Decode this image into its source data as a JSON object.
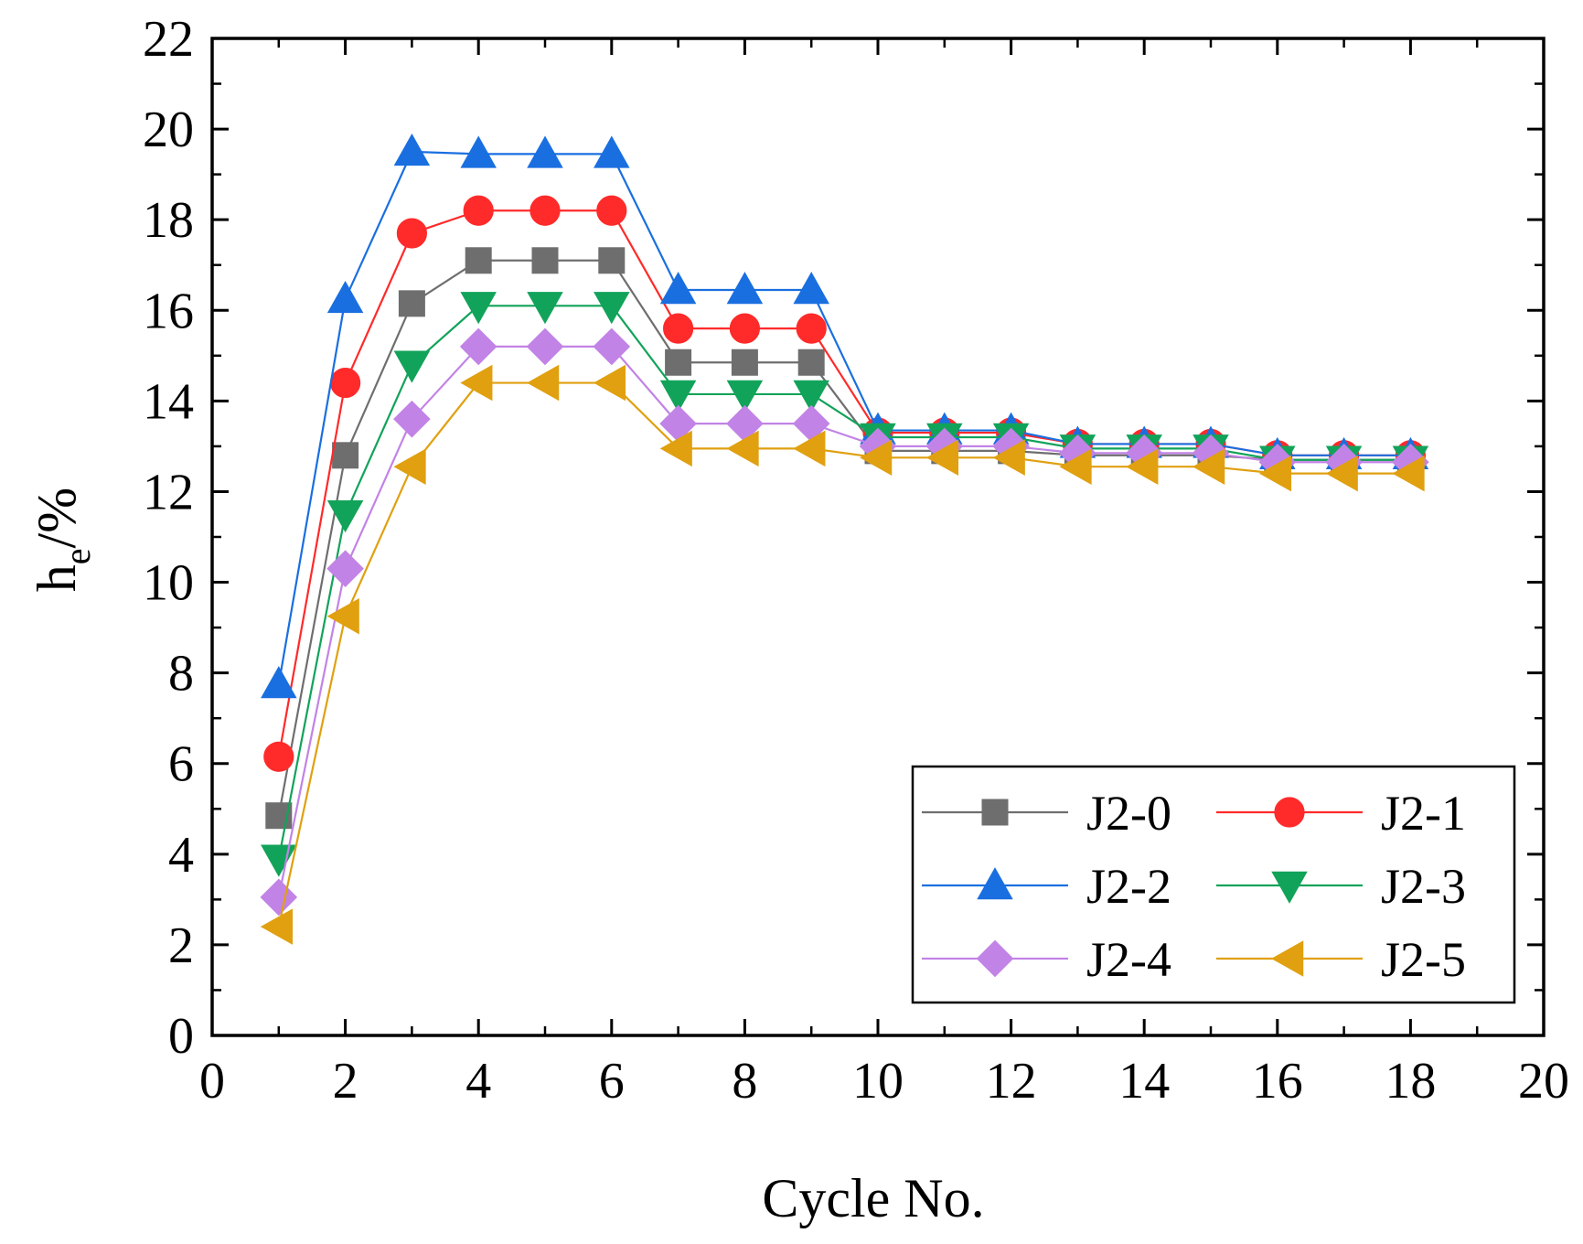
{
  "chart_data": {
    "type": "line",
    "title": "",
    "xlabel": "Cycle No.",
    "ylabel": {
      "main": "h",
      "subscript": "e",
      "suffix": "/%"
    },
    "xlim": [
      0,
      20
    ],
    "ylim": [
      0,
      22
    ],
    "xticks": [
      "0",
      "2",
      "4",
      "6",
      "8",
      "10",
      "12",
      "14",
      "16",
      "18",
      "20"
    ],
    "yticks": [
      "0",
      "2",
      "4",
      "6",
      "8",
      "10",
      "12",
      "14",
      "16",
      "18",
      "20",
      "22"
    ],
    "grid": false,
    "legend_position": "bottom-right",
    "x": [
      1,
      2,
      3,
      4,
      5,
      6,
      7,
      8,
      9,
      10,
      11,
      12,
      13,
      14,
      15,
      16,
      17,
      18
    ],
    "series": [
      {
        "name": "J2-0",
        "color": "#6e6e6e",
        "marker": "square",
        "values": [
          4.85,
          12.8,
          16.15,
          17.1,
          17.1,
          17.1,
          14.85,
          14.85,
          14.85,
          12.9,
          12.9,
          12.9,
          12.8,
          12.8,
          12.8,
          12.7,
          12.7,
          12.7
        ]
      },
      {
        "name": "J2-1",
        "color": "#ff2a2a",
        "marker": "circle",
        "values": [
          6.15,
          14.4,
          17.7,
          18.2,
          18.2,
          18.2,
          15.6,
          15.6,
          15.6,
          13.3,
          13.3,
          13.3,
          13.05,
          13.05,
          13.05,
          12.8,
          12.8,
          12.8
        ]
      },
      {
        "name": "J2-2",
        "color": "#1a6fe0",
        "marker": "triangle-up",
        "values": [
          7.75,
          16.25,
          19.5,
          19.45,
          19.45,
          19.45,
          16.45,
          16.45,
          16.45,
          13.35,
          13.35,
          13.35,
          13.05,
          13.05,
          13.05,
          12.8,
          12.8,
          12.8
        ]
      },
      {
        "name": "J2-3",
        "color": "#12a35a",
        "marker": "triangle-down",
        "values": [
          3.9,
          11.5,
          14.8,
          16.1,
          16.1,
          16.1,
          14.15,
          14.15,
          14.15,
          13.2,
          13.2,
          13.2,
          12.95,
          12.95,
          12.95,
          12.7,
          12.7,
          12.7
        ]
      },
      {
        "name": "J2-4",
        "color": "#c283e6",
        "marker": "diamond",
        "values": [
          3.05,
          10.3,
          13.6,
          15.2,
          15.2,
          15.2,
          13.5,
          13.5,
          13.5,
          13.0,
          13.0,
          13.0,
          12.85,
          12.85,
          12.85,
          12.65,
          12.65,
          12.65
        ]
      },
      {
        "name": "J2-5",
        "color": "#e0a010",
        "marker": "triangle-left",
        "values": [
          2.4,
          9.25,
          12.55,
          14.4,
          14.4,
          14.4,
          12.95,
          12.95,
          12.95,
          12.75,
          12.75,
          12.75,
          12.55,
          12.55,
          12.55,
          12.4,
          12.4,
          12.4
        ]
      }
    ]
  }
}
